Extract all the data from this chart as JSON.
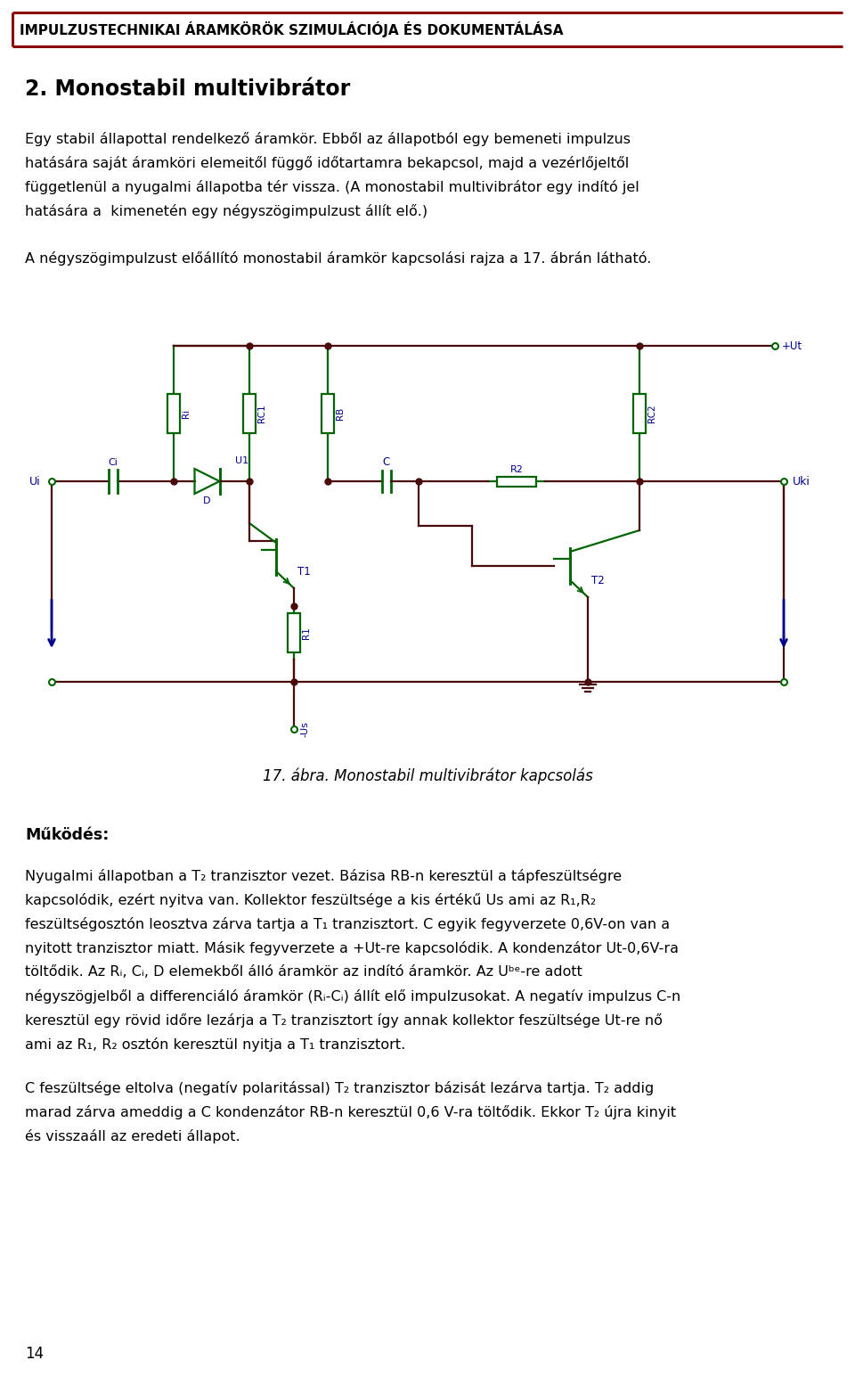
{
  "title_header": "IMPULZUSTECHNIKAI ÁRAMKÖRÖK SZIMULÁCIÓJA ÉS DOKUMENTÁLÁSA",
  "section_title": "2. Monostabil multivibrátor",
  "figure_caption": "17. ábra. Monostabil multivibrátor kapcsolás",
  "mukodes_title": "Működés:",
  "page_number": "14",
  "bg_color": "#ffffff",
  "header_border_color": "#8b0000",
  "header_line_color": "#8b0000",
  "circuit_wire_color": "#4a0a0a",
  "circuit_component_color": "#006400",
  "circuit_label_color": "#00008b",
  "circuit_dot_color": "#4a0a0a",
  "arrow_color": "#00008b"
}
